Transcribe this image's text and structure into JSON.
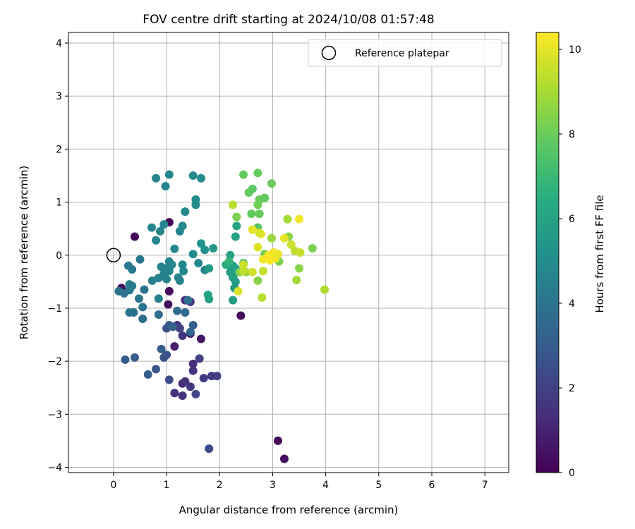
{
  "chart_data": {
    "type": "scatter",
    "title": "FOV centre drift starting at 2024/10/08 01:57:48",
    "xlabel": "Angular distance from reference (arcmin)",
    "ylabel": "Rotation from reference (arcmin)",
    "xlim": [
      -0.85,
      7.45
    ],
    "ylim": [
      -4.1,
      4.2
    ],
    "xticks": [
      "0",
      "1",
      "2",
      "3",
      "4",
      "5",
      "6",
      "7"
    ],
    "yticks": [
      "−4",
      "−3",
      "−2",
      "−1",
      "0",
      "1",
      "2",
      "3",
      "4"
    ],
    "grid": true,
    "legend_position": "top-right",
    "legend": {
      "label": "Reference platepar",
      "marker": "open-circle"
    },
    "reference_point": {
      "x": 0,
      "y": 0
    },
    "colorbar": {
      "label": "Hours from first FF file",
      "colormap": "viridis",
      "range": [
        0,
        10.4
      ],
      "ticks": [
        "0",
        "2",
        "4",
        "6",
        "8",
        "10"
      ]
    },
    "series": [
      {
        "points": [
          [
            1.05,
            0.62,
            0.1
          ],
          [
            0.4,
            0.35,
            0.2
          ],
          [
            1.05,
            -0.68,
            0.3
          ],
          [
            1.03,
            -0.93,
            0.4
          ],
          [
            2.4,
            -1.14,
            0.3
          ],
          [
            3.1,
            -3.5,
            0.2
          ],
          [
            3.22,
            -3.84,
            0.3
          ],
          [
            1.8,
            -3.65,
            2.3
          ],
          [
            0.15,
            -0.62,
            0.4
          ],
          [
            1.45,
            -1.48,
            0.6
          ],
          [
            1.65,
            -1.58,
            0.6
          ],
          [
            1.15,
            -1.72,
            0.8
          ],
          [
            1.3,
            -1.52,
            1.5
          ],
          [
            1.35,
            -0.85,
            1.2
          ],
          [
            1.45,
            -0.88,
            1.6
          ],
          [
            1.2,
            -1.32,
            1.4
          ],
          [
            1.5,
            -2.05,
            1.3
          ],
          [
            1.5,
            -2.18,
            1.5
          ],
          [
            1.62,
            -1.95,
            2.0
          ],
          [
            1.7,
            -2.32,
            1.8
          ],
          [
            1.85,
            -2.28,
            1.8
          ],
          [
            1.95,
            -2.28,
            2.0
          ],
          [
            1.3,
            -2.42,
            1.2
          ],
          [
            1.35,
            -2.38,
            1.5
          ],
          [
            1.45,
            -2.48,
            1.7
          ],
          [
            1.55,
            -2.62,
            2.2
          ],
          [
            1.15,
            -2.6,
            1.4
          ],
          [
            1.3,
            -2.65,
            1.6
          ],
          [
            1.05,
            -2.35,
            2.4
          ],
          [
            0.8,
            -2.15,
            2.8
          ],
          [
            0.65,
            -2.25,
            3.0
          ],
          [
            0.4,
            -1.93,
            3.1
          ],
          [
            0.22,
            -1.97,
            3.0
          ],
          [
            1.0,
            -1.88,
            2.6
          ],
          [
            0.95,
            -1.93,
            2.7
          ],
          [
            0.9,
            -1.77,
            3.0
          ],
          [
            1.25,
            -1.38,
            2.0
          ],
          [
            1.0,
            -1.38,
            2.5
          ],
          [
            1.05,
            -1.32,
            2.8
          ],
          [
            1.12,
            -1.35,
            3.2
          ],
          [
            1.5,
            -1.32,
            3.2
          ],
          [
            1.45,
            -1.45,
            3.4
          ],
          [
            1.2,
            -1.05,
            3.6
          ],
          [
            1.35,
            -1.08,
            3.5
          ],
          [
            1.4,
            -0.85,
            3.8
          ],
          [
            0.85,
            -1.12,
            3.7
          ],
          [
            0.55,
            -1.2,
            3.6
          ],
          [
            0.38,
            -1.08,
            3.8
          ],
          [
            0.55,
            -0.98,
            3.9
          ],
          [
            0.3,
            -1.08,
            4.0
          ],
          [
            0.48,
            -0.82,
            4.1
          ],
          [
            0.58,
            -0.65,
            3.9
          ],
          [
            0.3,
            -0.66,
            4.2
          ],
          [
            0.2,
            -0.72,
            4.0
          ],
          [
            0.1,
            -0.68,
            3.9
          ],
          [
            0.3,
            -0.55,
            4.4
          ],
          [
            0.35,
            -0.58,
            4.3
          ],
          [
            0.28,
            -0.2,
            4.2
          ],
          [
            0.35,
            -0.27,
            4.1
          ],
          [
            0.5,
            -0.08,
            4.1
          ],
          [
            0.73,
            -0.48,
            4.4
          ],
          [
            0.85,
            -0.43,
            4.5
          ],
          [
            0.9,
            -0.22,
            4.6
          ],
          [
            0.95,
            -0.35,
            4.5
          ],
          [
            1.0,
            -0.25,
            4.6
          ],
          [
            1.05,
            -0.3,
            4.7
          ],
          [
            0.85,
            -0.82,
            4.5
          ],
          [
            1.0,
            -0.45,
            4.6
          ],
          [
            1.05,
            -0.12,
            4.7
          ],
          [
            1.1,
            -0.18,
            4.8
          ],
          [
            1.22,
            -0.42,
            4.6
          ],
          [
            1.25,
            -0.48,
            4.7
          ],
          [
            1.3,
            -0.18,
            4.8
          ],
          [
            1.32,
            -0.3,
            4.7
          ],
          [
            1.15,
            0.12,
            4.8
          ],
          [
            1.5,
            0.02,
            4.9
          ],
          [
            1.6,
            -0.15,
            4.8
          ],
          [
            1.72,
            -0.28,
            4.6
          ],
          [
            0.8,
            0.28,
            4.6
          ],
          [
            0.72,
            0.52,
            4.8
          ],
          [
            0.88,
            0.45,
            4.7
          ],
          [
            0.95,
            0.58,
            4.6
          ],
          [
            1.25,
            0.45,
            4.8
          ],
          [
            1.3,
            0.55,
            4.9
          ],
          [
            1.35,
            0.82,
            4.8
          ],
          [
            1.55,
            0.95,
            4.9
          ],
          [
            1.55,
            1.05,
            5.0
          ],
          [
            1.5,
            1.5,
            4.9
          ],
          [
            1.65,
            1.45,
            5.0
          ],
          [
            1.05,
            1.52,
            4.8
          ],
          [
            0.8,
            1.45,
            4.7
          ],
          [
            0.98,
            1.3,
            4.6
          ],
          [
            1.65,
            0.22,
            5.2
          ],
          [
            1.72,
            0.1,
            5.3
          ],
          [
            1.88,
            0.13,
            5.5
          ],
          [
            1.8,
            -0.25,
            5.6
          ],
          [
            1.78,
            -0.75,
            6.0
          ],
          [
            1.8,
            -0.83,
            5.9
          ],
          [
            2.2,
            0.0,
            5.9
          ],
          [
            2.15,
            -0.18,
            6.3
          ],
          [
            2.2,
            -0.32,
            5.8
          ],
          [
            2.25,
            -0.42,
            5.9
          ],
          [
            2.3,
            -0.5,
            5.7
          ],
          [
            2.28,
            -0.62,
            5.6
          ],
          [
            2.25,
            -0.85,
            5.7
          ],
          [
            2.3,
            0.35,
            5.9
          ],
          [
            2.32,
            0.55,
            6.1
          ],
          [
            2.25,
            -0.2,
            5.8
          ],
          [
            2.28,
            -0.35,
            6.0
          ],
          [
            2.3,
            -0.25,
            5.9
          ],
          [
            2.12,
            -0.18,
            6.5
          ],
          [
            2.18,
            -0.12,
            6.8
          ],
          [
            2.25,
            0.95,
            9.3
          ],
          [
            2.32,
            0.72,
            8.3
          ],
          [
            2.45,
            1.52,
            7.9
          ],
          [
            2.55,
            1.18,
            7.9
          ],
          [
            2.62,
            1.25,
            7.8
          ],
          [
            2.6,
            0.78,
            7.9
          ],
          [
            2.72,
            0.95,
            8.1
          ],
          [
            2.75,
            1.05,
            8.0
          ],
          [
            2.72,
            1.55,
            7.9
          ],
          [
            2.85,
            1.08,
            7.9
          ],
          [
            2.75,
            0.78,
            7.9
          ],
          [
            2.98,
            1.35,
            8.0
          ],
          [
            2.72,
            0.52,
            7.5
          ],
          [
            2.45,
            -0.15,
            7.2
          ],
          [
            2.38,
            -0.32,
            8.5
          ],
          [
            2.5,
            -0.32,
            8.6
          ],
          [
            2.72,
            -0.48,
            8.5
          ],
          [
            2.8,
            -0.8,
            9.2
          ],
          [
            2.82,
            -0.3,
            9.5
          ],
          [
            2.85,
            0.02,
            8.1
          ],
          [
            2.98,
            0.32,
            8.8
          ],
          [
            3.02,
            0.05,
            8.6
          ],
          [
            3.12,
            -0.12,
            8.3
          ],
          [
            3.28,
            0.68,
            8.9
          ],
          [
            3.3,
            0.35,
            8.5
          ],
          [
            3.35,
            0.2,
            9.6
          ],
          [
            3.42,
            0.08,
            9.4
          ],
          [
            3.45,
            -0.47,
            8.9
          ],
          [
            3.5,
            -0.25,
            8.5
          ],
          [
            3.5,
            0.68,
            10.2
          ],
          [
            3.52,
            0.05,
            9.5
          ],
          [
            3.75,
            0.13,
            8.3
          ],
          [
            3.98,
            -0.65,
            9.1
          ],
          [
            2.45,
            -0.3,
            9.4
          ],
          [
            2.62,
            0.48,
            10.0
          ],
          [
            2.72,
            0.15,
            9.9
          ],
          [
            2.78,
            0.4,
            10.1
          ],
          [
            2.82,
            -0.08,
            10.2
          ],
          [
            2.92,
            0.0,
            10.3
          ],
          [
            2.95,
            -0.1,
            10.4
          ],
          [
            3.02,
            0.05,
            10.2
          ],
          [
            3.05,
            -0.06,
            10.3
          ],
          [
            3.1,
            0.02,
            10.1
          ],
          [
            3.22,
            0.32,
            10.0
          ],
          [
            2.62,
            -0.32,
            9.7
          ],
          [
            2.35,
            -0.68,
            9.8
          ],
          [
            2.75,
            0.42,
            9.8
          ],
          [
            2.45,
            -0.18,
            9.6
          ]
        ]
      }
    ]
  }
}
